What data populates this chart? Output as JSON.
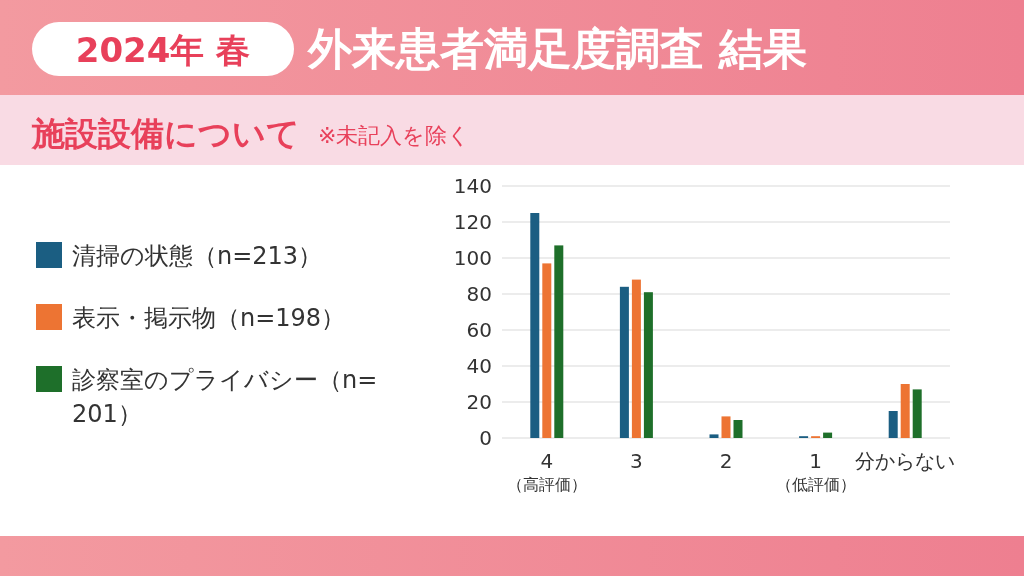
{
  "chart_data": {
    "type": "bar",
    "title": "外来患者満足度調査 結果",
    "subtitle": "施設設備について",
    "annotations": [
      "2024年 春",
      "※未記入を除く"
    ],
    "categories": [
      "4\n（高評価）",
      "3",
      "2",
      "1\n（低評価）",
      "分からない"
    ],
    "series": [
      {
        "name": "清掃の状態（n=213）",
        "color": "#1b5e82",
        "values": [
          125,
          84,
          2,
          1,
          15
        ]
      },
      {
        "name": "表示・掲示物（n=198）",
        "color": "#ed7433",
        "values": [
          97,
          88,
          12,
          1,
          30
        ]
      },
      {
        "name": "診察室のプライバシー（n=201）",
        "color": "#1e6f2a",
        "values": [
          107,
          81,
          10,
          3,
          27
        ]
      }
    ],
    "ylim": [
      0,
      140
    ],
    "yticks": [
      0,
      20,
      40,
      60,
      80,
      100,
      120,
      140
    ],
    "grid": "y",
    "legend": "left"
  }
}
